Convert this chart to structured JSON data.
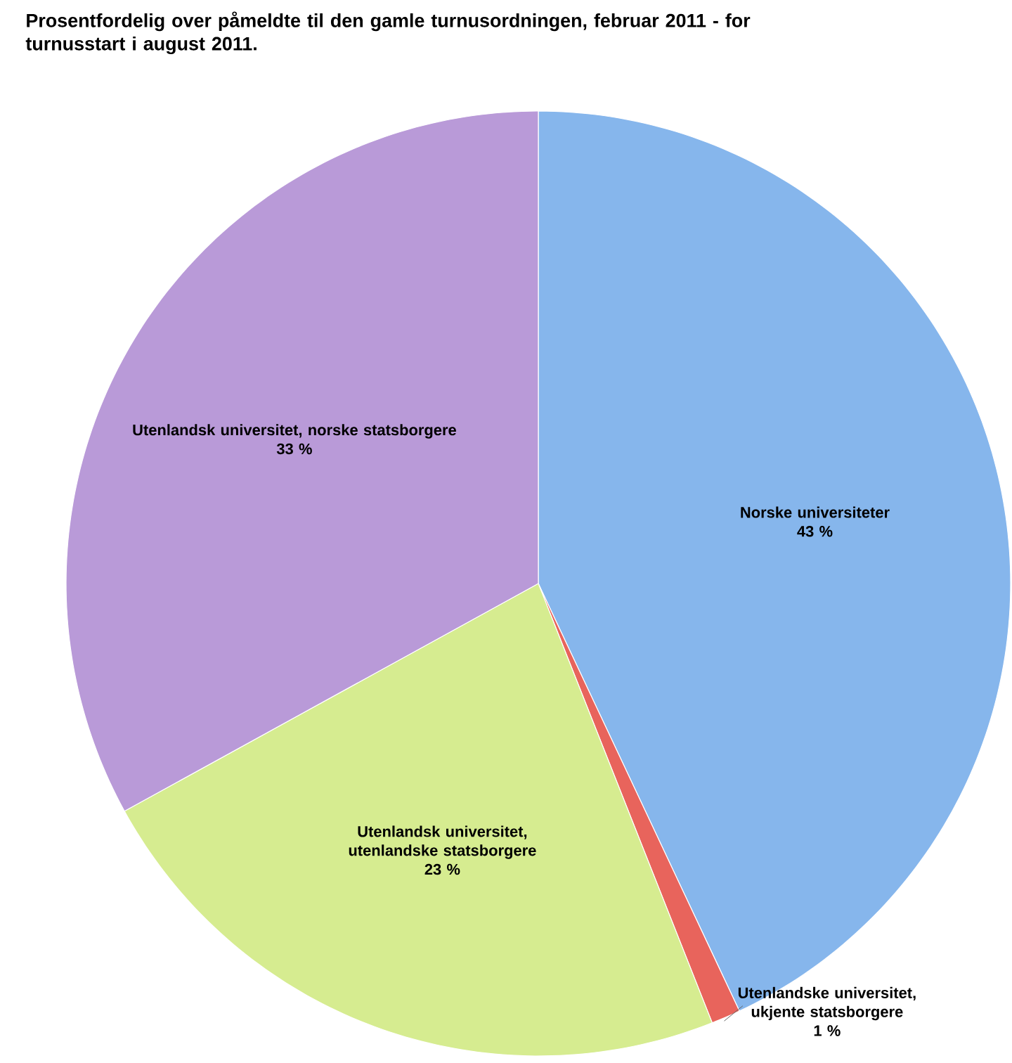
{
  "chart_data": {
    "type": "pie",
    "title": "Prosentfordelig over påmeldte til den gamle turnusordningen, februar 2011 - for turnusstart i august 2011.",
    "categories": [
      "Norske universiteter",
      "Utenlandske universitet, ukjente statsborgere",
      "Utenlandsk universitet, utenlandske statsborgere",
      "Utenlandsk universitet, norske statsborgere"
    ],
    "values": [
      43,
      1,
      23,
      33
    ],
    "value_labels": [
      "43 %",
      "1 %",
      "23 %",
      "33 %"
    ],
    "colors": [
      "#86b6ec",
      "#e8645c",
      "#d6ec90",
      "#b99ad8"
    ],
    "legend": false
  }
}
